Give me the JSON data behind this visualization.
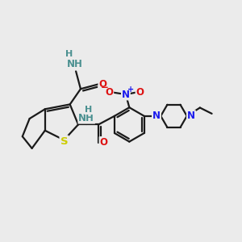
{
  "background_color": "#ebebeb",
  "bond_color": "#1a1a1a",
  "bond_width": 1.6,
  "atom_colors": {
    "N": "#1a1aee",
    "O": "#dd1111",
    "S": "#cccc00",
    "C": "#1a1a1a",
    "H": "#4a9090"
  },
  "font_size_atom": 8.5,
  "fig_width": 3.0,
  "fig_height": 3.0,
  "dpi": 100
}
